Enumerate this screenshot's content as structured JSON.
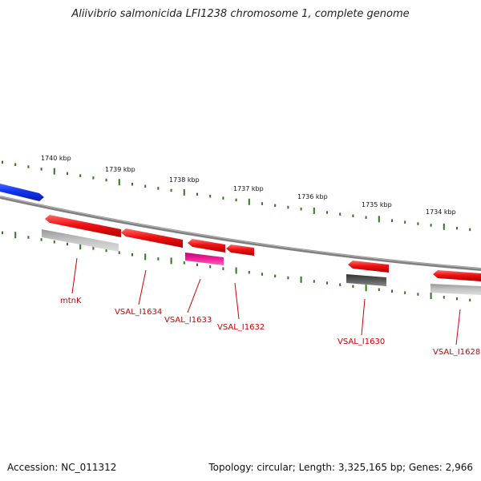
{
  "title": "Aliivibrio salmonicida LFI1238 chromosome 1, complete genome",
  "footer": {
    "accession": "Accession: NC_011312",
    "topology": "Topology: circular; Length: 3,325,165 bp; Genes: 2,966"
  },
  "colors": {
    "backbone": "#808080",
    "tick_green": "#2a7a1a",
    "gene_red": "#ee1111",
    "gene_blue": "#1133ee",
    "gene_grey_light": "#b8b8b8",
    "gene_grey_dark": "#5a5a5a",
    "gene_magenta": "#ee2299",
    "label_red": "#cc0000"
  },
  "scale": {
    "ticks": [
      {
        "label": "1740 kbp"
      },
      {
        "label": "1739 kbp"
      },
      {
        "label": "1738 kbp"
      },
      {
        "label": "1737 kbp"
      },
      {
        "label": "1736 kbp"
      },
      {
        "label": "1735 kbp"
      },
      {
        "label": "1734 kbp"
      }
    ]
  },
  "genes": [
    {
      "name": "mtnK",
      "strand": "plus",
      "color": "red"
    },
    {
      "name": "",
      "strand": "minus",
      "color": "grey-light"
    },
    {
      "name": "VSAL_I1634",
      "strand": "plus",
      "color": "red"
    },
    {
      "name": "VSAL_I1633",
      "strand": "plus",
      "color": "red"
    },
    {
      "name": "",
      "strand": "minus",
      "color": "magenta"
    },
    {
      "name": "VSAL_I1632",
      "strand": "plus",
      "color": "red"
    },
    {
      "name": "VSAL_I1630",
      "strand": "plus",
      "color": "red"
    },
    {
      "name": "",
      "strand": "minus",
      "color": "grey-dark"
    },
    {
      "name": "VSAL_I1628",
      "strand": "plus",
      "color": "red"
    },
    {
      "name": "",
      "strand": "minus",
      "color": "grey-light"
    },
    {
      "name": "",
      "strand": "plus",
      "color": "blue"
    }
  ]
}
